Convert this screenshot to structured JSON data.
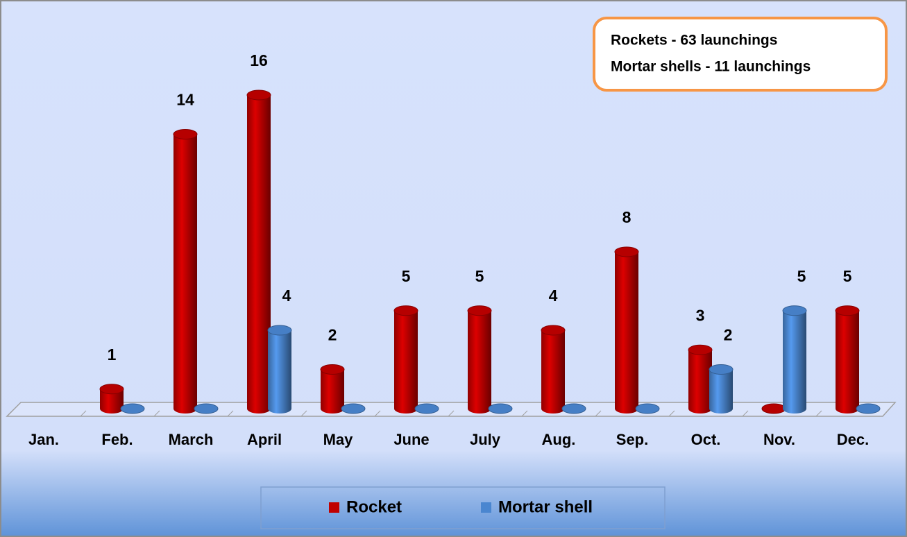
{
  "chart_data": {
    "type": "bar3d",
    "annotations": [
      "Rockets - 63 launchings",
      "Mortar shells - 11 launchings"
    ],
    "categories": [
      "Jan.",
      "Feb.",
      "March",
      "April",
      "May",
      "June",
      "July",
      "Aug.",
      "Sep.",
      "Oct.",
      "Nov.",
      "Dec."
    ],
    "series": [
      {
        "name": "Rocket",
        "color": "#c00000",
        "values": [
          null,
          1,
          14,
          16,
          2,
          5,
          5,
          4,
          8,
          3,
          0,
          5
        ]
      },
      {
        "name": "Mortar shell",
        "color": "#4a86d0",
        "values": [
          null,
          0,
          0,
          4,
          0,
          0,
          0,
          0,
          0,
          2,
          5,
          0
        ]
      }
    ]
  }
}
